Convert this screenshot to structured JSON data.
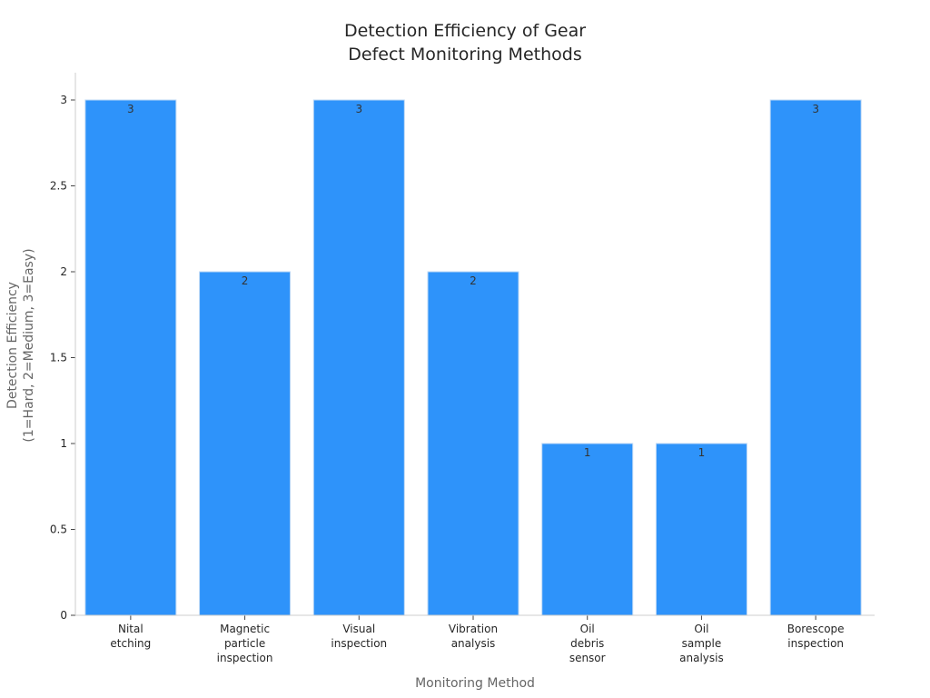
{
  "chart_data": {
    "type": "bar",
    "title": [
      "Detection Efficiency of Gear",
      "Defect Monitoring Methods"
    ],
    "xlabel": "Monitoring Method",
    "ylabel": [
      "Detection Efficiency",
      "(1=Hard, 2=Medium, 3=Easy)"
    ],
    "categories": [
      [
        "Nital",
        "etching"
      ],
      [
        "Magnetic",
        "particle",
        "inspection"
      ],
      [
        "Visual",
        "inspection"
      ],
      [
        "Vibration",
        "analysis"
      ],
      [
        "Oil",
        "debris",
        "sensor"
      ],
      [
        "Oil",
        "sample",
        "analysis"
      ],
      [
        "Borescope",
        "inspection"
      ]
    ],
    "values": [
      3,
      2,
      3,
      2,
      1,
      1,
      3
    ],
    "ylim": [
      0,
      3
    ],
    "yticks": [
      0,
      0.5,
      1,
      1.5,
      2,
      2.5,
      3
    ],
    "grid": false,
    "colors": {
      "bar": "#2E93FA",
      "bar_edge": "#BFD9F5"
    }
  }
}
